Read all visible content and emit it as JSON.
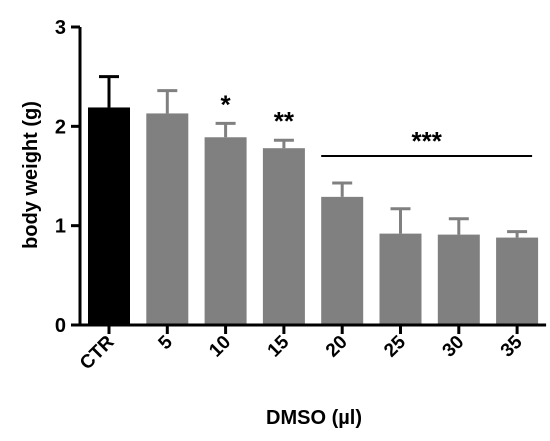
{
  "chart_data": {
    "type": "bar",
    "categories": [
      "CTR",
      "5",
      "10",
      "15",
      "20",
      "25",
      "30",
      "35"
    ],
    "values": [
      2.19,
      2.13,
      1.89,
      1.78,
      1.29,
      0.92,
      0.91,
      0.88
    ],
    "errors": [
      0.31,
      0.23,
      0.14,
      0.08,
      0.14,
      0.25,
      0.16,
      0.06
    ],
    "bar_colors": [
      "#000000",
      "#808080",
      "#808080",
      "#808080",
      "#808080",
      "#808080",
      "#808080",
      "#808080"
    ],
    "xlabel": "DMSO (µl)",
    "ylabel": "body weight (g)",
    "ylim": [
      0,
      3
    ],
    "yticks": [
      "0",
      "1",
      "2",
      "3"
    ],
    "grid": false,
    "annotations": [
      {
        "text": "*",
        "category": "10"
      },
      {
        "text": "**",
        "category": "15"
      },
      {
        "text": "***",
        "from_category": "20",
        "to_category": "35",
        "type": "bracket"
      }
    ]
  }
}
